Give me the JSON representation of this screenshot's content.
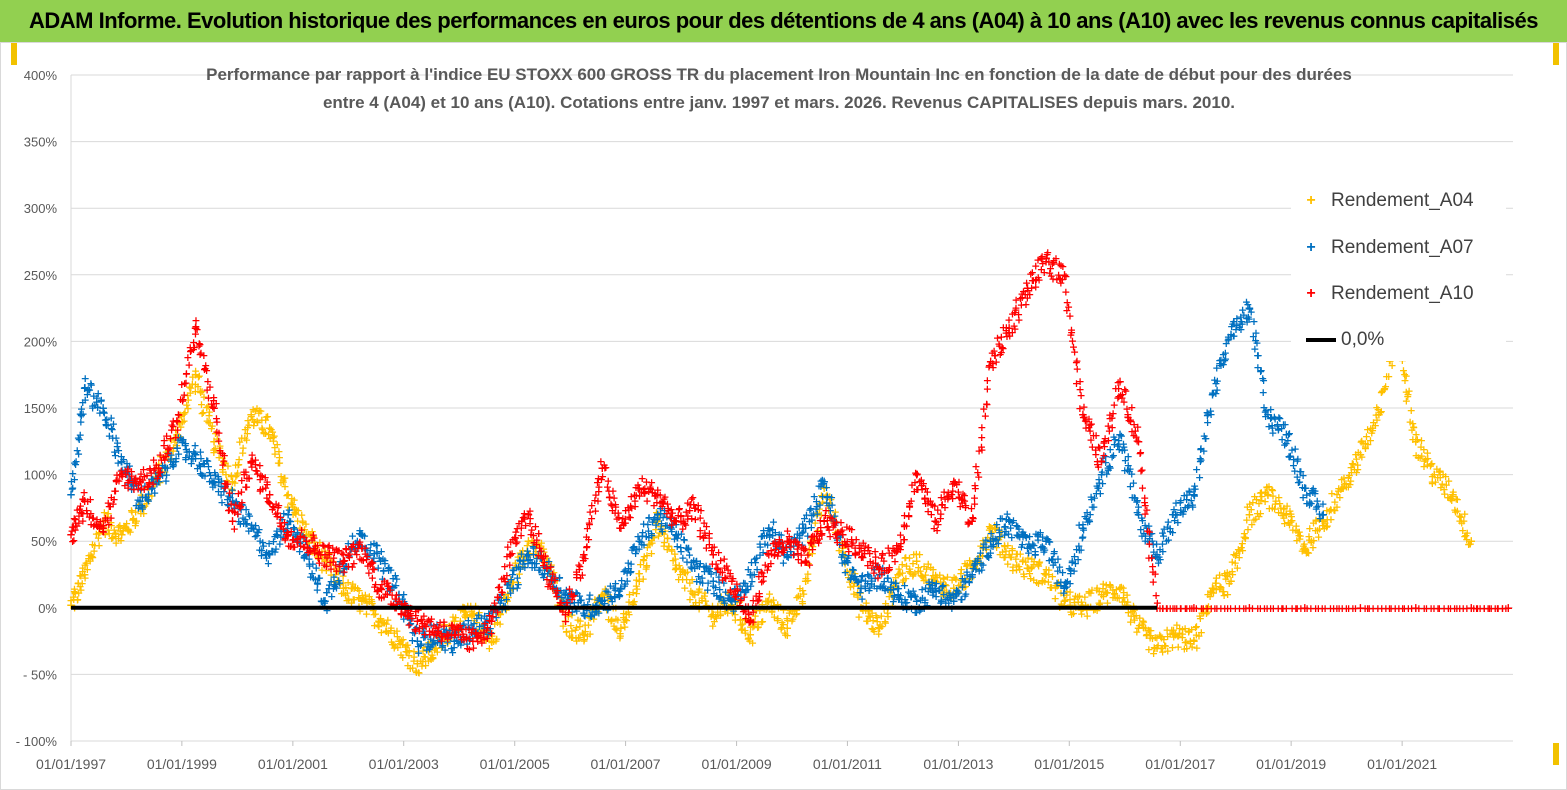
{
  "banner": {
    "title": "ADAM Informe. Evolution historique des performances en euros pour des détentions de 4 ans (A04) à 10 ans (A10) avec les revenus connus capitalisés"
  },
  "colors": {
    "banner_bg": "#92d050",
    "A04": "#ffc000",
    "A07": "#0070c0",
    "A10": "#ff0000",
    "zero_line": "#000000"
  },
  "chart_data": {
    "type": "scatter",
    "title_lines": [
      "Performance par rapport à l'indice EU STOXX 600 GROSS TR  du placement Iron Mountain Inc en fonction de la date de début pour des durées",
      "entre 4 (A04) et 10 ans (A10). Cotations entre janv. 1997 et mars. 2026. Revenus CAPITALISES depuis mars. 2010."
    ],
    "xlabel": "",
    "ylabel": "",
    "x_range": [
      "1997-01-01",
      "2023-01-01"
    ],
    "y_range": [
      -100,
      400
    ],
    "y_unit": "%",
    "x_tick_labels": [
      "01/01/1997",
      "01/01/1999",
      "01/01/2001",
      "01/01/2003",
      "01/01/2005",
      "01/01/2007",
      "01/01/2009",
      "01/01/2011",
      "01/01/2013",
      "01/01/2015",
      "01/01/2017",
      "01/01/2019",
      "01/01/2021"
    ],
    "y_tick_labels": [
      "400%",
      "350%",
      "300%",
      "250%",
      "200%",
      "150%",
      "100%",
      "50%",
      "0%",
      "- 50%",
      "- 100%"
    ],
    "grid": "horizontal",
    "legend_position": "right",
    "series": [
      {
        "name": "Rendement_A04",
        "color": "#ffc000",
        "points": [
          [
            "1997-01-01",
            2
          ],
          [
            "1997-04-01",
            25
          ],
          [
            "1997-08-01",
            65
          ],
          [
            "1997-12-01",
            55
          ],
          [
            "1998-04-01",
            75
          ],
          [
            "1998-08-01",
            100
          ],
          [
            "1998-12-01",
            130
          ],
          [
            "1999-04-01",
            175
          ],
          [
            "1999-08-01",
            125
          ],
          [
            "1999-12-01",
            95
          ],
          [
            "2000-04-01",
            145
          ],
          [
            "2000-08-01",
            135
          ],
          [
            "2000-12-01",
            85
          ],
          [
            "2001-04-01",
            55
          ],
          [
            "2001-08-01",
            35
          ],
          [
            "2001-12-01",
            15
          ],
          [
            "2002-04-01",
            5
          ],
          [
            "2002-08-01",
            -8
          ],
          [
            "2002-12-01",
            -25
          ],
          [
            "2003-04-01",
            -42
          ],
          [
            "2003-08-01",
            -30
          ],
          [
            "2003-12-01",
            -10
          ],
          [
            "2004-04-01",
            -5
          ],
          [
            "2004-08-01",
            -25
          ],
          [
            "2004-12-01",
            15
          ],
          [
            "2005-04-01",
            50
          ],
          [
            "2005-08-01",
            35
          ],
          [
            "2005-12-01",
            -10
          ],
          [
            "2006-04-01",
            -20
          ],
          [
            "2006-08-01",
            10
          ],
          [
            "2006-12-01",
            -15
          ],
          [
            "2007-04-01",
            20
          ],
          [
            "2007-08-01",
            65
          ],
          [
            "2007-12-01",
            30
          ],
          [
            "2008-04-01",
            10
          ],
          [
            "2008-08-01",
            -5
          ],
          [
            "2008-12-01",
            5
          ],
          [
            "2009-04-01",
            -20
          ],
          [
            "2009-08-01",
            5
          ],
          [
            "2009-12-01",
            -15
          ],
          [
            "2010-04-01",
            20
          ],
          [
            "2010-08-01",
            90
          ],
          [
            "2010-12-01",
            45
          ],
          [
            "2011-04-01",
            0
          ],
          [
            "2011-08-01",
            -15
          ],
          [
            "2011-12-01",
            25
          ],
          [
            "2012-04-01",
            35
          ],
          [
            "2012-08-01",
            20
          ],
          [
            "2012-12-01",
            15
          ],
          [
            "2013-04-01",
            30
          ],
          [
            "2013-08-01",
            60
          ],
          [
            "2013-12-01",
            40
          ],
          [
            "2014-04-01",
            30
          ],
          [
            "2014-08-01",
            25
          ],
          [
            "2014-12-01",
            5
          ],
          [
            "2015-04-01",
            0
          ],
          [
            "2015-08-01",
            10
          ],
          [
            "2015-12-01",
            15
          ],
          [
            "2016-04-01",
            -15
          ],
          [
            "2016-08-01",
            -30
          ],
          [
            "2016-12-01",
            -20
          ],
          [
            "2017-04-01",
            -25
          ],
          [
            "2017-08-01",
            15
          ],
          [
            "2017-12-01",
            20
          ],
          [
            "2018-04-01",
            70
          ],
          [
            "2018-08-01",
            85
          ],
          [
            "2018-12-01",
            70
          ],
          [
            "2019-04-01",
            45
          ],
          [
            "2019-08-01",
            65
          ],
          [
            "2019-12-01",
            90
          ],
          [
            "2020-04-01",
            115
          ],
          [
            "2020-08-01",
            145
          ],
          [
            "2020-12-01",
            210
          ],
          [
            "2021-04-01",
            125
          ],
          [
            "2021-08-01",
            100
          ],
          [
            "2021-12-01",
            85
          ],
          [
            "2022-04-01",
            50
          ]
        ]
      },
      {
        "name": "Rendement_A07",
        "color": "#0070c0",
        "points": [
          [
            "1997-01-01",
            85
          ],
          [
            "1997-04-01",
            165
          ],
          [
            "1997-08-01",
            150
          ],
          [
            "1997-12-01",
            110
          ],
          [
            "1998-04-01",
            80
          ],
          [
            "1998-08-01",
            95
          ],
          [
            "1998-12-01",
            120
          ],
          [
            "1999-04-01",
            115
          ],
          [
            "1999-08-01",
            95
          ],
          [
            "1999-12-01",
            80
          ],
          [
            "2000-04-01",
            60
          ],
          [
            "2000-08-01",
            40
          ],
          [
            "2000-12-01",
            70
          ],
          [
            "2001-04-01",
            40
          ],
          [
            "2001-08-01",
            5
          ],
          [
            "2001-12-01",
            35
          ],
          [
            "2002-04-01",
            55
          ],
          [
            "2002-08-01",
            35
          ],
          [
            "2002-12-01",
            10
          ],
          [
            "2003-04-01",
            -25
          ],
          [
            "2003-08-01",
            -20
          ],
          [
            "2003-12-01",
            -25
          ],
          [
            "2004-04-01",
            -15
          ],
          [
            "2004-08-01",
            -10
          ],
          [
            "2004-12-01",
            15
          ],
          [
            "2005-04-01",
            40
          ],
          [
            "2005-08-01",
            30
          ],
          [
            "2005-12-01",
            10
          ],
          [
            "2006-04-01",
            0
          ],
          [
            "2006-08-01",
            5
          ],
          [
            "2006-12-01",
            15
          ],
          [
            "2007-04-01",
            50
          ],
          [
            "2007-08-01",
            70
          ],
          [
            "2007-12-01",
            55
          ],
          [
            "2008-04-01",
            30
          ],
          [
            "2008-08-01",
            20
          ],
          [
            "2008-12-01",
            5
          ],
          [
            "2009-04-01",
            25
          ],
          [
            "2009-08-01",
            60
          ],
          [
            "2009-12-01",
            40
          ],
          [
            "2010-04-01",
            60
          ],
          [
            "2010-08-01",
            95
          ],
          [
            "2010-12-01",
            40
          ],
          [
            "2011-04-01",
            15
          ],
          [
            "2011-08-01",
            25
          ],
          [
            "2011-12-01",
            10
          ],
          [
            "2012-04-01",
            5
          ],
          [
            "2012-08-01",
            15
          ],
          [
            "2012-12-01",
            5
          ],
          [
            "2013-04-01",
            25
          ],
          [
            "2013-08-01",
            50
          ],
          [
            "2013-12-01",
            65
          ],
          [
            "2014-04-01",
            45
          ],
          [
            "2014-08-01",
            50
          ],
          [
            "2014-12-01",
            15
          ],
          [
            "2015-04-01",
            60
          ],
          [
            "2015-08-01",
            100
          ],
          [
            "2015-12-01",
            130
          ],
          [
            "2016-04-01",
            70
          ],
          [
            "2016-08-01",
            40
          ],
          [
            "2016-12-01",
            70
          ],
          [
            "2017-04-01",
            85
          ],
          [
            "2017-08-01",
            160
          ],
          [
            "2017-12-01",
            205
          ],
          [
            "2018-04-01",
            225
          ],
          [
            "2018-08-01",
            145
          ],
          [
            "2018-12-01",
            130
          ],
          [
            "2019-04-01",
            90
          ],
          [
            "2019-08-01",
            70
          ]
        ]
      },
      {
        "name": "Rendement_A10",
        "color": "#ff0000",
        "points": [
          [
            "1997-01-01",
            55
          ],
          [
            "1997-04-01",
            80
          ],
          [
            "1997-08-01",
            60
          ],
          [
            "1997-12-01",
            100
          ],
          [
            "1998-04-01",
            95
          ],
          [
            "1998-08-01",
            105
          ],
          [
            "1998-12-01",
            140
          ],
          [
            "1999-04-01",
            210
          ],
          [
            "1999-08-01",
            150
          ],
          [
            "1999-12-01",
            65
          ],
          [
            "2000-04-01",
            110
          ],
          [
            "2000-08-01",
            85
          ],
          [
            "2000-12-01",
            55
          ],
          [
            "2001-04-01",
            50
          ],
          [
            "2001-08-01",
            40
          ],
          [
            "2001-12-01",
            35
          ],
          [
            "2002-04-01",
            45
          ],
          [
            "2002-08-01",
            15
          ],
          [
            "2002-12-01",
            5
          ],
          [
            "2003-04-01",
            -10
          ],
          [
            "2003-08-01",
            -15
          ],
          [
            "2003-12-01",
            -20
          ],
          [
            "2004-04-01",
            -25
          ],
          [
            "2004-08-01",
            -10
          ],
          [
            "2004-12-01",
            40
          ],
          [
            "2005-04-01",
            70
          ],
          [
            "2005-08-01",
            30
          ],
          [
            "2005-12-01",
            -5
          ],
          [
            "2006-04-01",
            40
          ],
          [
            "2006-08-01",
            105
          ],
          [
            "2006-12-01",
            60
          ],
          [
            "2007-04-01",
            90
          ],
          [
            "2007-08-01",
            85
          ],
          [
            "2007-12-01",
            65
          ],
          [
            "2008-04-01",
            75
          ],
          [
            "2008-08-01",
            40
          ],
          [
            "2008-12-01",
            20
          ],
          [
            "2009-04-01",
            -10
          ],
          [
            "2009-08-01",
            40
          ],
          [
            "2009-12-01",
            50
          ],
          [
            "2010-04-01",
            35
          ],
          [
            "2010-08-01",
            65
          ],
          [
            "2010-12-01",
            55
          ],
          [
            "2011-04-01",
            45
          ],
          [
            "2011-08-01",
            30
          ],
          [
            "2011-12-01",
            45
          ],
          [
            "2012-04-01",
            100
          ],
          [
            "2012-08-01",
            65
          ],
          [
            "2012-12-01",
            95
          ],
          [
            "2013-04-01",
            65
          ],
          [
            "2013-08-01",
            185
          ],
          [
            "2013-12-01",
            210
          ],
          [
            "2014-04-01",
            240
          ],
          [
            "2014-08-01",
            260
          ],
          [
            "2014-12-01",
            250
          ],
          [
            "2015-04-01",
            145
          ],
          [
            "2015-08-01",
            110
          ],
          [
            "2015-12-01",
            170
          ],
          [
            "2016-04-01",
            125
          ],
          [
            "2016-08-01",
            0
          ],
          [
            "2017-04-01",
            0
          ],
          [
            "2018-04-01",
            0
          ],
          [
            "2019-04-01",
            0
          ],
          [
            "2020-04-01",
            0
          ],
          [
            "2021-04-01",
            0
          ],
          [
            "2022-04-01",
            0
          ],
          [
            "2022-12-01",
            0
          ]
        ]
      },
      {
        "name": "0,0%",
        "color": "#000000",
        "line": true,
        "points": [
          [
            "1997-01-01",
            0
          ],
          [
            "2016-08-01",
            0
          ]
        ]
      }
    ]
  },
  "legend": {
    "items": [
      {
        "label": "Rendement_A04",
        "color": "#ffc000",
        "marker": "+"
      },
      {
        "label": "Rendement_A07",
        "color": "#0070c0",
        "marker": "+"
      },
      {
        "label": "Rendement_A10",
        "color": "#ff0000",
        "marker": "+"
      },
      {
        "label": "0,0%",
        "color": "#000000",
        "marker": "line"
      }
    ]
  }
}
